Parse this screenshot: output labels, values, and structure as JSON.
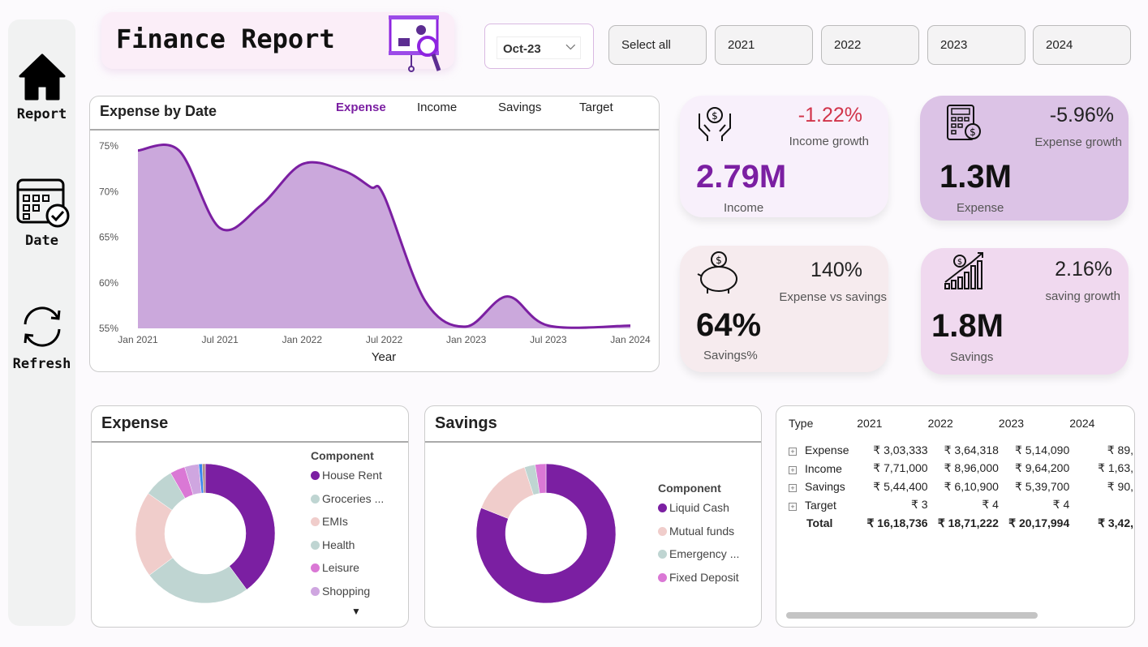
{
  "nav": {
    "items": [
      {
        "label": "Report",
        "icon": "home-icon"
      },
      {
        "label": "Date",
        "icon": "calendar-icon"
      },
      {
        "label": "Refresh",
        "icon": "refresh-icon"
      }
    ]
  },
  "header": {
    "title": "Finance Report",
    "date_selected": "Oct-23",
    "year_buttons": [
      "Select all",
      "2021",
      "2022",
      "2023",
      "2024"
    ]
  },
  "colors": {
    "accent": "#7b1fa2",
    "area": "#cba8dc",
    "negative": "#d1344a"
  },
  "line_card": {
    "title": "Expense by Date",
    "tabs": [
      "Expense",
      "Income",
      "Savings",
      "Target"
    ],
    "active_tab": "Expense"
  },
  "chart_data": [
    {
      "type": "area",
      "title": "Expense by Date",
      "xlabel": "Year",
      "ylabel": "",
      "ylim": [
        55,
        75
      ],
      "yticks": [
        "55%",
        "60%",
        "65%",
        "70%",
        "75%"
      ],
      "xticks": [
        "Jan 2021",
        "Jul 2021",
        "Jan 2022",
        "Jul 2022",
        "Jan 2023",
        "Jul 2023",
        "Jan 2024"
      ],
      "x": [
        "2021-01",
        "2021-04",
        "2021-07",
        "2021-10",
        "2022-01",
        "2022-04",
        "2022-06",
        "2022-07",
        "2022-10",
        "2023-01",
        "2023-04",
        "2023-07",
        "2024-01"
      ],
      "values": [
        74.5,
        74.5,
        66,
        68.5,
        73,
        72.3,
        70.5,
        69.5,
        58,
        55.2,
        58.5,
        55.3,
        55.3
      ]
    },
    {
      "type": "pie",
      "title": "Expense",
      "legend_title": "Component",
      "labels": [
        "House Rent",
        "Groceries ...",
        "EMIs",
        "Health",
        "Leisure",
        "Shopping",
        "",
        ""
      ],
      "values": [
        40,
        25,
        20,
        7,
        3.5,
        3.3,
        0.8,
        0.7
      ],
      "colors": [
        "#7b1fa2",
        "#bfd5d2",
        "#f0cdcb",
        "#bfd5d2",
        "#da78d5",
        "#cfa6e0",
        "#3a86f0",
        "#b0908a"
      ]
    },
    {
      "type": "pie",
      "title": "Savings",
      "legend_title": "Component",
      "labels": [
        "Liquid Cash",
        "Mutual funds",
        "Emergency ...",
        "Fixed Deposit"
      ],
      "values": [
        81,
        14,
        2.5,
        2.5
      ],
      "colors": [
        "#7b1fa2",
        "#f0cdcb",
        "#bfd5d2",
        "#da78d5"
      ]
    }
  ],
  "kpis": {
    "income": {
      "value": "2.79M",
      "label": "Income",
      "growth": "-1.22%",
      "growth_label": "Income growth"
    },
    "expense": {
      "value": "1.3M",
      "label": "Expense",
      "growth": "-5.96%",
      "growth_label": "Expense growth"
    },
    "savings_pct": {
      "value": "64%",
      "label": "Savings%",
      "growth": "140%",
      "growth_label": "Expense vs savings"
    },
    "savings": {
      "value": "1.8M",
      "label": "Savings",
      "growth": "2.16%",
      "growth_label": "saving growth"
    }
  },
  "table": {
    "headers": [
      "Type",
      "2021",
      "2022",
      "2023",
      "2024"
    ],
    "rows": [
      [
        "Expense",
        "₹ 3,03,333",
        "₹ 3,64,318",
        "₹ 5,14,090",
        "₹ 89,"
      ],
      [
        "Income",
        "₹ 7,71,000",
        "₹ 8,96,000",
        "₹ 9,64,200",
        "₹ 1,63,"
      ],
      [
        "Savings",
        "₹ 5,44,400",
        "₹ 6,10,900",
        "₹ 5,39,700",
        "₹ 90,"
      ],
      [
        "Target",
        "₹ 3",
        "₹ 4",
        "₹ 4",
        ""
      ]
    ],
    "total": [
      "Total",
      "₹ 16,18,736",
      "₹ 18,71,222",
      "₹ 20,17,994",
      "₹ 3,42,"
    ]
  }
}
